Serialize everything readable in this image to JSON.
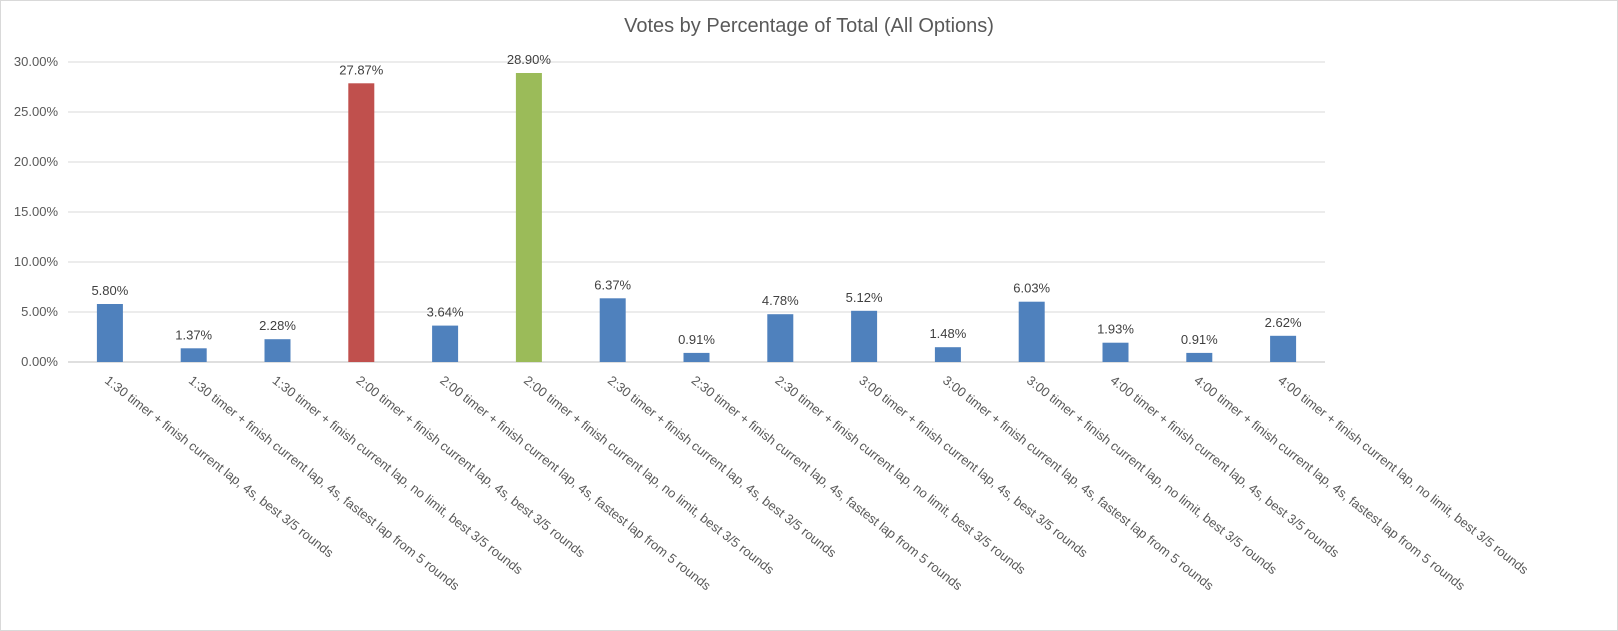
{
  "chart_data": {
    "type": "bar",
    "title": "Votes by Percentage of Total (All Options)",
    "xlabel": "",
    "ylabel": "",
    "ylim": [
      0,
      30
    ],
    "yticks": [
      "0.00%",
      "5.00%",
      "10.00%",
      "15.00%",
      "20.00%",
      "25.00%",
      "30.00%"
    ],
    "grid": true,
    "legend": "none",
    "colors": {
      "default": "#4f81bd",
      "highlight_red": "#c0504d",
      "highlight_green": "#9bbb59"
    },
    "categories": [
      "1:30 timer + finish current lap, 4s, best 3/5 rounds",
      "1:30 timer + finish current lap, 4s, fastest lap from 5 rounds",
      "1:30 timer + finish current lap, no limit, best 3/5 rounds",
      "2:00 timer + finish current lap, 4s, best 3/5 rounds",
      "2:00 timer + finish current lap, 4s, fastest lap from 5 rounds",
      "2:00 timer + finish current lap, no limit, best 3/5 rounds",
      "2:30 timer + finish current lap, 4s, best 3/5 rounds",
      "2:30 timer + finish current lap, 4s, fastest lap from 5 rounds",
      "2:30 timer + finish current lap, no limit, best 3/5 rounds",
      "3:00 timer + finish current lap, 4s, best 3/5 rounds",
      "3:00 timer + finish current lap, 4s, fastest lap from 5 rounds",
      "3:00 timer + finish current lap, no limit, best 3/5 rounds",
      "4:00 timer + finish current lap, 4s, best 3/5 rounds",
      "4:00 timer + finish current lap, 4s, fastest lap from 5 rounds",
      "4:00 timer + finish current lap, no limit, best 3/5 rounds"
    ],
    "values": [
      5.8,
      1.37,
      2.28,
      27.87,
      3.64,
      28.9,
      6.37,
      0.91,
      4.78,
      5.12,
      1.48,
      6.03,
      1.93,
      0.91,
      2.62
    ],
    "data_labels": [
      "5.80%",
      "1.37%",
      "2.28%",
      "27.87%",
      "3.64%",
      "28.90%",
      "6.37%",
      "0.91%",
      "4.78%",
      "5.12%",
      "1.48%",
      "6.03%",
      "1.93%",
      "0.91%",
      "2.62%"
    ],
    "bar_colors": [
      "#4f81bd",
      "#4f81bd",
      "#4f81bd",
      "#c0504d",
      "#4f81bd",
      "#9bbb59",
      "#4f81bd",
      "#4f81bd",
      "#4f81bd",
      "#4f81bd",
      "#4f81bd",
      "#4f81bd",
      "#4f81bd",
      "#4f81bd",
      "#4f81bd"
    ]
  }
}
